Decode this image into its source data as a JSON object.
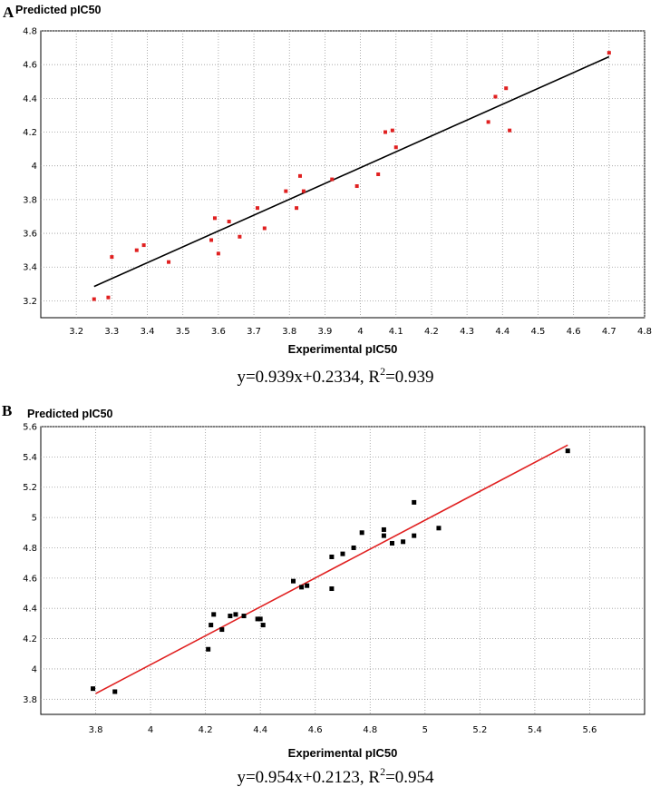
{
  "chart_data": [
    {
      "panel": "A",
      "type": "scatter",
      "ylabel": "Predicted pIC50",
      "xlabel": "Experimental pIC50",
      "xlim": [
        3.1,
        4.8
      ],
      "ylim": [
        3.1,
        4.8
      ],
      "xticks": [
        "3.2",
        "3.3",
        "3.4",
        "3.5",
        "3.6",
        "3.7",
        "3.8",
        "3.9",
        "4",
        "4.1",
        "4.2",
        "4.3",
        "4.4",
        "4.5",
        "4.6",
        "4.7",
        "4.8"
      ],
      "yticks": [
        "3.2",
        "3.4",
        "3.6",
        "3.8",
        "4",
        "4.2",
        "4.4",
        "4.6",
        "4.8"
      ],
      "grid": "dotted",
      "point_color": "#e02020",
      "line_color": "#000000",
      "fit": {
        "slope": 0.939,
        "intercept": 0.2334,
        "x_range": [
          3.25,
          4.7
        ]
      },
      "equation": {
        "text": "y=0.939x+0.2334, R",
        "sup": "2",
        "tail": "=0.939"
      },
      "points": [
        {
          "x": 3.25,
          "y": 3.21
        },
        {
          "x": 3.29,
          "y": 3.22
        },
        {
          "x": 3.3,
          "y": 3.46
        },
        {
          "x": 3.37,
          "y": 3.5
        },
        {
          "x": 3.39,
          "y": 3.53
        },
        {
          "x": 3.46,
          "y": 3.43
        },
        {
          "x": 3.58,
          "y": 3.56
        },
        {
          "x": 3.59,
          "y": 3.69
        },
        {
          "x": 3.6,
          "y": 3.48
        },
        {
          "x": 3.63,
          "y": 3.67
        },
        {
          "x": 3.66,
          "y": 3.58
        },
        {
          "x": 3.71,
          "y": 3.75
        },
        {
          "x": 3.73,
          "y": 3.63
        },
        {
          "x": 3.79,
          "y": 3.85
        },
        {
          "x": 3.82,
          "y": 3.75
        },
        {
          "x": 3.83,
          "y": 3.94
        },
        {
          "x": 3.84,
          "y": 3.85
        },
        {
          "x": 3.92,
          "y": 3.92
        },
        {
          "x": 3.99,
          "y": 3.88
        },
        {
          "x": 4.05,
          "y": 3.95
        },
        {
          "x": 4.07,
          "y": 4.2
        },
        {
          "x": 4.09,
          "y": 4.21
        },
        {
          "x": 4.1,
          "y": 4.11
        },
        {
          "x": 4.36,
          "y": 4.26
        },
        {
          "x": 4.38,
          "y": 4.41
        },
        {
          "x": 4.41,
          "y": 4.46
        },
        {
          "x": 4.42,
          "y": 4.21
        },
        {
          "x": 4.7,
          "y": 4.67
        }
      ]
    },
    {
      "panel": "B",
      "type": "scatter",
      "ylabel": "Predicted pIC50",
      "xlabel": "Experimental pIC50",
      "xlim": [
        3.6,
        5.8
      ],
      "ylim": [
        3.7,
        5.6
      ],
      "xticks": [
        "3.8",
        "4",
        "4.2",
        "4.4",
        "4.6",
        "4.8",
        "5",
        "5.2",
        "5.4",
        "5.6"
      ],
      "xtick_values": [
        3.8,
        4.0,
        4.2,
        4.4,
        4.6,
        4.8,
        5.0,
        5.2,
        5.4,
        5.6
      ],
      "yticks": [
        "3.8",
        "4",
        "4.2",
        "4.4",
        "4.6",
        "4.8",
        "5",
        "5.2",
        "5.4",
        "5.6"
      ],
      "grid": "dotted",
      "point_color": "#000000",
      "line_color": "#e02020",
      "fit": {
        "slope": 0.954,
        "intercept": 0.2123,
        "x_range": [
          3.8,
          5.52
        ]
      },
      "equation": {
        "text": "y=0.954x+0.2123, R",
        "sup": "2",
        "tail": "=0.954"
      },
      "points": [
        {
          "x": 3.79,
          "y": 3.87
        },
        {
          "x": 3.87,
          "y": 3.85
        },
        {
          "x": 4.21,
          "y": 4.13
        },
        {
          "x": 4.22,
          "y": 4.29
        },
        {
          "x": 4.23,
          "y": 4.36
        },
        {
          "x": 4.26,
          "y": 4.26
        },
        {
          "x": 4.29,
          "y": 4.35
        },
        {
          "x": 4.31,
          "y": 4.36
        },
        {
          "x": 4.34,
          "y": 4.35
        },
        {
          "x": 4.39,
          "y": 4.33
        },
        {
          "x": 4.4,
          "y": 4.33
        },
        {
          "x": 4.41,
          "y": 4.29
        },
        {
          "x": 4.52,
          "y": 4.58
        },
        {
          "x": 4.55,
          "y": 4.54
        },
        {
          "x": 4.57,
          "y": 4.55
        },
        {
          "x": 4.66,
          "y": 4.74
        },
        {
          "x": 4.66,
          "y": 4.53
        },
        {
          "x": 4.7,
          "y": 4.76
        },
        {
          "x": 4.74,
          "y": 4.8
        },
        {
          "x": 4.77,
          "y": 4.9
        },
        {
          "x": 4.85,
          "y": 4.88
        },
        {
          "x": 4.85,
          "y": 4.92
        },
        {
          "x": 4.88,
          "y": 4.83
        },
        {
          "x": 4.92,
          "y": 4.84
        },
        {
          "x": 4.96,
          "y": 5.1
        },
        {
          "x": 4.96,
          "y": 4.88
        },
        {
          "x": 5.05,
          "y": 4.93
        },
        {
          "x": 5.52,
          "y": 5.44
        }
      ]
    }
  ]
}
